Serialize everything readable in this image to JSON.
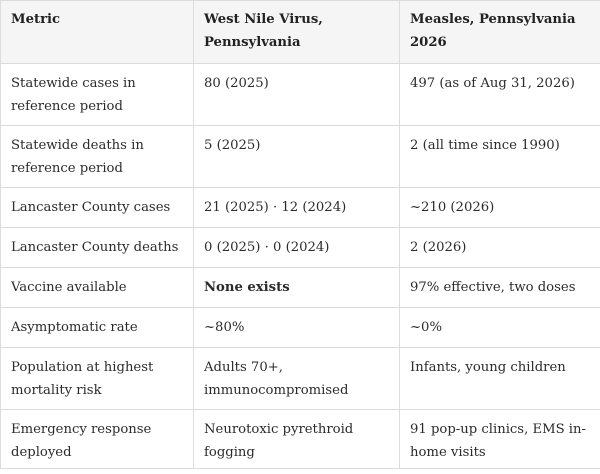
{
  "table": {
    "headers": [
      "Metric",
      "West Nile Virus, Pennsylvania",
      "Measles, Pennsylvania 2026"
    ],
    "rows": [
      {
        "metric": "Statewide cases in reference period",
        "wnv": "80 (2025)",
        "measles": "497 (as of Aug 31, 2026)"
      },
      {
        "metric": "Statewide deaths in reference period",
        "wnv": "5 (2025)",
        "measles": "2 (all time since 1990)"
      },
      {
        "metric": "Lancaster County cases",
        "wnv": "21 (2025) · 12 (2024)",
        "measles": "~210 (2026)"
      },
      {
        "metric": "Lancaster County deaths",
        "wnv": "0 (2025) · 0 (2024)",
        "measles": "2 (2026)"
      },
      {
        "metric": "Vaccine available",
        "wnv": "None exists",
        "measles": "97% effective, two doses"
      },
      {
        "metric": "Asymptomatic rate",
        "wnv": "~80%",
        "measles": "~0%"
      },
      {
        "metric": "Population at highest mortality risk",
        "wnv": "Adults 70+, immunocompromised",
        "measles": "Infants, young children"
      },
      {
        "metric": "Emergency response deployed",
        "wnv": "Neurotoxic pyrethroid fogging",
        "measles": "91 pop-up clinics, EMS in-home visits"
      }
    ]
  }
}
